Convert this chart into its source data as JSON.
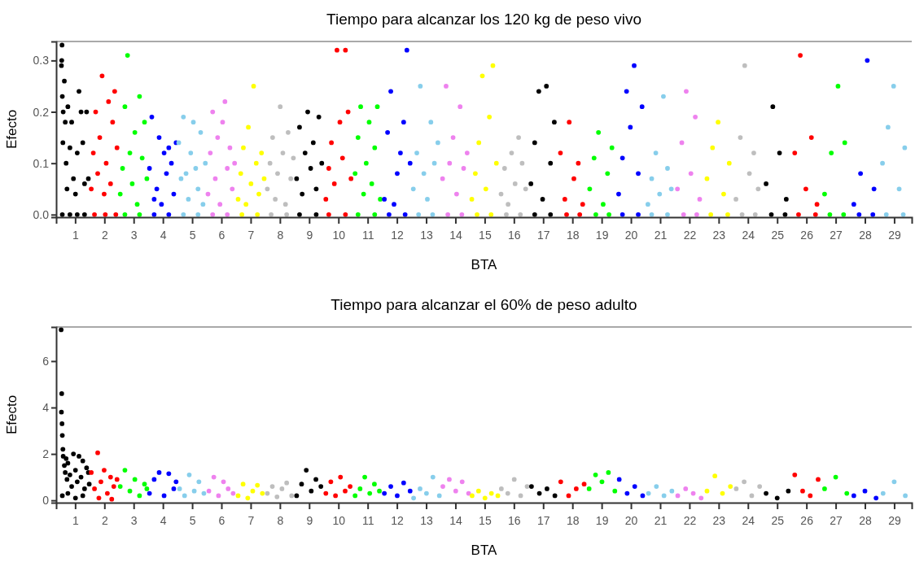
{
  "chart_data": [
    {
      "type": "scatter",
      "title": "Tiempo para alcanzar los 120 kg de peso vivo",
      "xlabel": "BTA",
      "ylabel": "Efecto",
      "marker": "circle",
      "xlim": [
        0.35,
        29.6
      ],
      "ylim": [
        -0.005,
        0.337
      ],
      "yticks": [
        {
          "value": 0,
          "label": "0.0"
        },
        {
          "value": 0.1,
          "label": "0.1"
        },
        {
          "value": 0.2,
          "label": "0.2"
        },
        {
          "value": 0.3,
          "label": "0.3"
        }
      ],
      "xticks": [
        1,
        2,
        3,
        4,
        5,
        6,
        7,
        8,
        9,
        10,
        11,
        12,
        13,
        14,
        15,
        16,
        17,
        18,
        19,
        20,
        21,
        22,
        23,
        24,
        25,
        26,
        27,
        28,
        29
      ],
      "series": [
        {
          "color": "#000000",
          "x": [
            0.53,
            0.54,
            0.55,
            0.56,
            0.58,
            0.59,
            0.63,
            0.66,
            0.69,
            0.72,
            0.75,
            0.82,
            0.88,
            0.94,
            1.01,
            1.07,
            1.13,
            1.2,
            1.26,
            1.32,
            1.39,
            1.45,
            0.56,
            0.82,
            1.07,
            1.32
          ],
          "values": [
            0.29,
            0.3,
            0.33,
            0.23,
            0.14,
            0.2,
            0.26,
            0.18,
            0.1,
            0.05,
            0.21,
            0.13,
            0.18,
            0.07,
            0.04,
            0.12,
            0.24,
            0.2,
            0.14,
            0.06,
            0.2,
            0.07,
            0,
            0,
            0,
            0
          ]
        },
        {
          "color": "#ff0000",
          "x": [
            1.55,
            1.62,
            1.7,
            1.77,
            1.84,
            1.92,
            1.99,
            2.06,
            2.14,
            2.21,
            2.28,
            2.35,
            2.43,
            1.66,
            2.03,
            2.39
          ],
          "values": [
            0.05,
            0.12,
            0.2,
            0.08,
            0.15,
            0.27,
            0.04,
            0.1,
            0.22,
            0.06,
            0.18,
            0.24,
            0.13,
            0,
            0,
            0
          ]
        },
        {
          "color": "#00ff00",
          "x": [
            2.54,
            2.62,
            2.7,
            2.79,
            2.87,
            2.95,
            3.04,
            3.12,
            3.2,
            3.29,
            3.37,
            3.45,
            2.7,
            3.2
          ],
          "values": [
            0.04,
            0.09,
            0.21,
            0.31,
            0.12,
            0.06,
            0.16,
            0.02,
            0.23,
            0.11,
            0.18,
            0.07,
            0,
            0
          ]
        },
        {
          "color": "#0000ff",
          "x": [
            3.54,
            3.62,
            3.7,
            3.79,
            3.87,
            3.95,
            4.04,
            4.12,
            4.2,
            4.29,
            4.37,
            4.45,
            3.7,
            4.2
          ],
          "values": [
            0.09,
            0.19,
            0.03,
            0.05,
            0.15,
            0.02,
            0.12,
            0.08,
            0.13,
            0.1,
            0.04,
            0.14,
            0,
            0
          ]
        },
        {
          "color": "#87ceeb",
          "x": [
            4.54,
            4.62,
            4.7,
            4.79,
            4.87,
            4.95,
            5.04,
            5.12,
            5.2,
            5.29,
            5.37,
            5.45,
            4.7,
            5.2
          ],
          "values": [
            0.14,
            0.07,
            0.19,
            0.08,
            0.03,
            0.12,
            0.18,
            0.09,
            0.05,
            0.16,
            0.02,
            0.1,
            0,
            0
          ]
        },
        {
          "color": "#ee82ee",
          "x": [
            5.54,
            5.62,
            5.7,
            5.79,
            5.87,
            5.95,
            6.04,
            6.12,
            6.2,
            6.29,
            6.37,
            6.45,
            5.7,
            6.2
          ],
          "values": [
            0.04,
            0.12,
            0.2,
            0.07,
            0.15,
            0.02,
            0.18,
            0.22,
            0.09,
            0.13,
            0.05,
            0.1,
            0,
            0
          ]
        },
        {
          "color": "#ffff00",
          "x": [
            6.57,
            6.66,
            6.75,
            6.84,
            6.92,
            7.01,
            7.1,
            7.19,
            7.28,
            7.37,
            7.46,
            6.7,
            7.23
          ],
          "values": [
            0.03,
            0.08,
            0.13,
            0.02,
            0.17,
            0.06,
            0.25,
            0.1,
            0.04,
            0.12,
            0.07,
            0,
            0
          ]
        },
        {
          "color": "#bebebe",
          "x": [
            7.57,
            7.66,
            7.75,
            7.84,
            7.92,
            8.01,
            8.1,
            8.19,
            8.28,
            8.37,
            8.46,
            7.7,
            8.23
          ],
          "values": [
            0.05,
            0.1,
            0.15,
            0.03,
            0.08,
            0.21,
            0.12,
            0.02,
            0.16,
            0.07,
            0.11,
            0,
            0
          ]
        },
        {
          "color": "#000000",
          "x": [
            8.57,
            8.67,
            8.76,
            8.86,
            8.95,
            9.05,
            9.14,
            9.24,
            9.33,
            9.43,
            8.67,
            9.24
          ],
          "values": [
            0.07,
            0.17,
            0.04,
            0.12,
            0.2,
            0.09,
            0.14,
            0.05,
            0.19,
            0.1,
            0,
            0
          ]
        },
        {
          "color": "#ff0000",
          "x": [
            9.57,
            9.67,
            9.76,
            9.86,
            9.95,
            10.05,
            10.14,
            10.24,
            10.33,
            10.43,
            9.67,
            10.24
          ],
          "values": [
            0.03,
            0.09,
            0.14,
            0.06,
            0.32,
            0.18,
            0.11,
            0.32,
            0.2,
            0.07,
            0,
            0
          ]
        },
        {
          "color": "#00ff00",
          "x": [
            10.57,
            10.67,
            10.76,
            10.86,
            10.95,
            11.05,
            11.14,
            11.24,
            11.33,
            11.43,
            10.67,
            11.24
          ],
          "values": [
            0.08,
            0.15,
            0.21,
            0.04,
            0.1,
            0.18,
            0.06,
            0.13,
            0.21,
            0.03,
            0,
            0
          ]
        },
        {
          "color": "#0000ff",
          "x": [
            11.57,
            11.68,
            11.79,
            11.9,
            12.01,
            12.12,
            12.23,
            12.34,
            12.45,
            11.73,
            12.28
          ],
          "values": [
            0.03,
            0.16,
            0.24,
            0.02,
            0.08,
            0.12,
            0.18,
            0.32,
            0.1,
            0,
            0
          ]
        },
        {
          "color": "#87ceeb",
          "x": [
            12.56,
            12.68,
            12.8,
            12.92,
            13.04,
            13.16,
            13.28,
            13.4,
            12.74,
            13.22
          ],
          "values": [
            0.05,
            0.12,
            0.25,
            0.08,
            0.03,
            0.18,
            0.1,
            0.14,
            0,
            0
          ]
        },
        {
          "color": "#ee82ee",
          "x": [
            13.56,
            13.68,
            13.8,
            13.92,
            14.04,
            14.16,
            14.28,
            14.4,
            13.74,
            14.22
          ],
          "values": [
            0.07,
            0.25,
            0.1,
            0.15,
            0.04,
            0.21,
            0.09,
            0.12,
            0,
            0
          ]
        },
        {
          "color": "#ffff00",
          "x": [
            14.56,
            14.68,
            14.8,
            14.92,
            15.04,
            15.16,
            15.28,
            15.4,
            14.74,
            15.22
          ],
          "values": [
            0.03,
            0.08,
            0.14,
            0.27,
            0.05,
            0.19,
            0.29,
            0.1,
            0,
            0
          ]
        },
        {
          "color": "#bebebe",
          "x": [
            15.56,
            15.68,
            15.8,
            15.92,
            16.04,
            16.16,
            16.28,
            16.4,
            15.74,
            16.22
          ],
          "values": [
            0.04,
            0.09,
            0.02,
            0.12,
            0.06,
            0.15,
            0.1,
            0.05,
            0,
            0
          ]
        },
        {
          "color": "#000000",
          "x": [
            16.58,
            16.71,
            16.85,
            16.98,
            17.11,
            17.25,
            17.38,
            16.71,
            17.25
          ],
          "values": [
            0.06,
            0.14,
            0.24,
            0.03,
            0.25,
            0.1,
            0.18,
            0,
            0
          ]
        },
        {
          "color": "#ff0000",
          "x": [
            17.59,
            17.74,
            17.89,
            18.05,
            18.2,
            18.35,
            17.8,
            18.25
          ],
          "values": [
            0.12,
            0.03,
            0.18,
            0.07,
            0.1,
            0.02,
            0,
            0
          ]
        },
        {
          "color": "#00ff00",
          "x": [
            18.59,
            18.74,
            18.89,
            19.05,
            19.2,
            19.35,
            18.8,
            19.25
          ],
          "values": [
            0.05,
            0.11,
            0.16,
            0.02,
            0.08,
            0.13,
            0,
            0
          ]
        },
        {
          "color": "#0000ff",
          "x": [
            19.58,
            19.71,
            19.85,
            19.98,
            20.11,
            20.25,
            20.38,
            19.71,
            20.25
          ],
          "values": [
            0.04,
            0.11,
            0.24,
            0.17,
            0.29,
            0.08,
            0.21,
            0,
            0
          ]
        },
        {
          "color": "#87ceeb",
          "x": [
            20.58,
            20.71,
            20.85,
            20.98,
            21.11,
            21.25,
            21.38,
            20.71,
            21.25
          ],
          "values": [
            0.02,
            0.07,
            0.12,
            0.04,
            0.23,
            0.09,
            0.05,
            0,
            0
          ]
        },
        {
          "color": "#ee82ee",
          "x": [
            21.59,
            21.74,
            21.89,
            22.05,
            22.2,
            22.35,
            21.8,
            22.25
          ],
          "values": [
            0.05,
            0.14,
            0.24,
            0.08,
            0.19,
            0.03,
            0,
            0
          ]
        },
        {
          "color": "#ffff00",
          "x": [
            22.6,
            22.79,
            22.98,
            23.17,
            23.36,
            22.73,
            23.31
          ],
          "values": [
            0.07,
            0.13,
            0.18,
            0.04,
            0.1,
            0,
            0
          ]
        },
        {
          "color": "#bebebe",
          "x": [
            23.59,
            23.74,
            23.89,
            24.05,
            24.2,
            24.35,
            23.8,
            24.25
          ],
          "values": [
            0.03,
            0.15,
            0.29,
            0.08,
            0.12,
            0.05,
            0,
            0
          ]
        },
        {
          "color": "#000000",
          "x": [
            24.62,
            24.85,
            25.08,
            25.31,
            24.8,
            25.27
          ],
          "values": [
            0.06,
            0.21,
            0.12,
            0.03,
            0,
            0
          ]
        },
        {
          "color": "#ff0000",
          "x": [
            25.6,
            25.79,
            25.98,
            26.17,
            26.36,
            25.73,
            26.31
          ],
          "values": [
            0.12,
            0.31,
            0.05,
            0.15,
            0.02,
            0,
            0
          ]
        },
        {
          "color": "#00ff00",
          "x": [
            26.62,
            26.85,
            27.08,
            27.31,
            26.8,
            27.27
          ],
          "values": [
            0.04,
            0.12,
            0.25,
            0.14,
            0,
            0
          ]
        },
        {
          "color": "#0000ff",
          "x": [
            27.62,
            27.85,
            28.08,
            28.31,
            27.8,
            28.27
          ],
          "values": [
            0.02,
            0.08,
            0.3,
            0.05,
            0,
            0
          ]
        },
        {
          "color": "#87ceeb",
          "x": [
            28.6,
            28.79,
            28.98,
            29.17,
            29.36,
            28.73,
            29.31
          ],
          "values": [
            0.1,
            0.17,
            0.25,
            0.05,
            0.13,
            0,
            0
          ]
        }
      ]
    },
    {
      "type": "scatter",
      "title": "Tiempo para alcanzar el 60% de peso adulto",
      "xlabel": "BTA",
      "ylabel": "Efecto",
      "marker": "circle",
      "xlim": [
        0.35,
        29.6
      ],
      "ylim": [
        -0.1,
        7.47
      ],
      "yticks": [
        0,
        2,
        4,
        6
      ],
      "xticks": [
        1,
        2,
        3,
        4,
        5,
        6,
        7,
        8,
        9,
        10,
        11,
        12,
        13,
        14,
        15,
        16,
        17,
        18,
        19,
        20,
        21,
        22,
        23,
        24,
        25,
        26,
        27,
        28,
        29
      ],
      "series": [
        {
          "color": "#000000",
          "x": [
            0.52,
            0.53,
            0.54,
            0.55,
            0.56,
            0.58,
            0.59,
            0.63,
            0.66,
            0.69,
            0.72,
            0.75,
            0.82,
            0.88,
            0.94,
            1.01,
            1.07,
            1.13,
            1.2,
            1.26,
            1.32,
            1.39,
            1.45,
            1.48,
            0.56,
            0.75,
            1.01,
            1.26
          ],
          "values": [
            7.35,
            3.8,
            4.6,
            3.3,
            2.8,
            2.2,
            1.9,
            1.5,
            1.2,
            1.8,
            0.9,
            1.6,
            1.1,
            0.6,
            2.0,
            1.3,
            0.8,
            1.9,
            1.0,
            1.7,
            0.5,
            1.4,
            1.2,
            0.7,
            0.2,
            0.3,
            0.1,
            0.2
          ]
        },
        {
          "color": "#ff0000",
          "x": [
            1.55,
            1.66,
            1.77,
            1.88,
            1.99,
            2.1,
            2.21,
            2.32,
            2.43,
            1.81,
            2.25
          ],
          "values": [
            1.2,
            0.5,
            2.05,
            0.8,
            1.3,
            0.3,
            1.0,
            0.6,
            0.9,
            0.1,
            0.05
          ]
        },
        {
          "color": "#00ff00",
          "x": [
            2.54,
            2.7,
            2.87,
            3.04,
            3.2,
            3.37,
            3.45
          ],
          "values": [
            0.6,
            1.3,
            0.4,
            0.9,
            0.2,
            0.7,
            0.5
          ]
        },
        {
          "color": "#0000ff",
          "x": [
            3.54,
            3.7,
            3.87,
            4.04,
            4.2,
            4.37,
            4.45
          ],
          "values": [
            0.3,
            0.9,
            1.2,
            0.2,
            1.15,
            0.5,
            0.8
          ]
        },
        {
          "color": "#87ceeb",
          "x": [
            4.57,
            4.74,
            4.9,
            5.07,
            5.23,
            5.4
          ],
          "values": [
            0.5,
            0.2,
            1.1,
            0.4,
            0.8,
            0.3
          ]
        },
        {
          "color": "#ee82ee",
          "x": [
            5.57,
            5.74,
            5.9,
            6.07,
            6.23,
            6.4
          ],
          "values": [
            0.4,
            1.0,
            0.2,
            0.8,
            0.5,
            0.3
          ]
        },
        {
          "color": "#ffff00",
          "x": [
            6.57,
            6.74,
            6.9,
            7.07,
            7.23,
            7.4
          ],
          "values": [
            0.2,
            0.7,
            0.1,
            0.4,
            0.65,
            0.3
          ]
        },
        {
          "color": "#bebebe",
          "x": [
            7.57,
            7.74,
            7.9,
            8.07,
            8.23,
            8.4
          ],
          "values": [
            0.3,
            0.6,
            0.15,
            0.5,
            0.75,
            0.2
          ]
        },
        {
          "color": "#000000",
          "x": [
            8.57,
            8.74,
            8.9,
            9.07,
            9.23,
            9.4
          ],
          "values": [
            0.2,
            0.7,
            1.3,
            0.4,
            0.9,
            0.6
          ]
        },
        {
          "color": "#ff0000",
          "x": [
            9.57,
            9.74,
            9.9,
            10.07,
            10.23,
            10.4
          ],
          "values": [
            0.3,
            0.8,
            0.2,
            1.0,
            0.4,
            0.6
          ]
        },
        {
          "color": "#00ff00",
          "x": [
            10.57,
            10.74,
            10.9,
            11.07,
            11.23,
            11.4
          ],
          "values": [
            0.2,
            0.5,
            1.0,
            0.3,
            0.7,
            0.4
          ]
        },
        {
          "color": "#0000ff",
          "x": [
            11.57,
            11.79,
            12.01,
            12.23,
            12.45
          ],
          "values": [
            0.3,
            0.6,
            0.2,
            0.75,
            0.4
          ]
        },
        {
          "color": "#87ceeb",
          "x": [
            12.57,
            12.79,
            13.01,
            13.23,
            13.45
          ],
          "values": [
            0.1,
            0.5,
            0.3,
            1.0,
            0.2
          ]
        },
        {
          "color": "#ee82ee",
          "x": [
            13.57,
            13.79,
            14.01,
            14.23,
            14.45
          ],
          "values": [
            0.6,
            0.9,
            0.4,
            0.8,
            0.3
          ]
        },
        {
          "color": "#ffff00",
          "x": [
            14.57,
            14.79,
            15.01,
            15.23,
            15.45
          ],
          "values": [
            0.2,
            0.4,
            0.1,
            0.3,
            0.2
          ]
        },
        {
          "color": "#bebebe",
          "x": [
            15.57,
            15.79,
            16.01,
            16.23,
            16.45
          ],
          "values": [
            0.5,
            0.3,
            0.9,
            0.2,
            0.6
          ]
        },
        {
          "color": "#000000",
          "x": [
            16.6,
            16.87,
            17.13,
            17.4
          ],
          "values": [
            0.6,
            0.3,
            0.5,
            0.2
          ]
        },
        {
          "color": "#ff0000",
          "x": [
            17.6,
            17.87,
            18.13,
            18.4
          ],
          "values": [
            0.8,
            0.2,
            0.5,
            0.7
          ]
        },
        {
          "color": "#00ff00",
          "x": [
            18.57,
            18.79,
            19.01,
            19.23,
            19.45
          ],
          "values": [
            0.5,
            1.1,
            0.8,
            1.2,
            0.4
          ]
        },
        {
          "color": "#0000ff",
          "x": [
            19.6,
            19.87,
            20.13,
            20.4
          ],
          "values": [
            0.9,
            0.3,
            0.6,
            0.2
          ]
        },
        {
          "color": "#87ceeb",
          "x": [
            20.6,
            20.87,
            21.13,
            21.4
          ],
          "values": [
            0.3,
            0.6,
            0.2,
            0.4
          ]
        },
        {
          "color": "#ee82ee",
          "x": [
            21.6,
            21.87,
            22.13,
            22.4
          ],
          "values": [
            0.2,
            0.5,
            0.3,
            0.1
          ]
        },
        {
          "color": "#ffff00",
          "x": [
            22.6,
            22.87,
            23.13,
            23.4
          ],
          "values": [
            0.4,
            1.05,
            0.3,
            0.6
          ]
        },
        {
          "color": "#bebebe",
          "x": [
            23.6,
            23.87,
            24.13,
            24.4
          ],
          "values": [
            0.5,
            0.8,
            0.2,
            0.6
          ]
        },
        {
          "color": "#000000",
          "x": [
            24.62,
            25,
            25.38
          ],
          "values": [
            0.3,
            0.1,
            0.4
          ]
        },
        {
          "color": "#ff0000",
          "x": [
            25.6,
            25.87,
            26.13,
            26.4
          ],
          "values": [
            1.1,
            0.4,
            0.2,
            0.9
          ]
        },
        {
          "color": "#00ff00",
          "x": [
            26.62,
            27,
            27.38
          ],
          "values": [
            0.5,
            1.0,
            0.3
          ]
        },
        {
          "color": "#0000ff",
          "x": [
            27.62,
            28,
            28.38
          ],
          "values": [
            0.2,
            0.4,
            0.1
          ]
        },
        {
          "color": "#87ceeb",
          "x": [
            28.62,
            29,
            29.38
          ],
          "values": [
            0.3,
            0.8,
            0.2
          ]
        }
      ]
    }
  ]
}
